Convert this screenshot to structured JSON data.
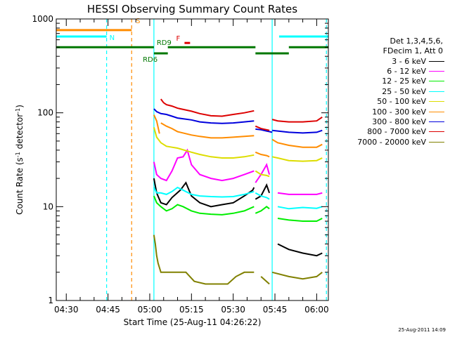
{
  "chart_data": {
    "type": "line",
    "title": "HESSI Observing Summary Count Rates",
    "xlabel": "Start Time (25-Aug-11 04:26:22)",
    "ylabel_parts": [
      "Count Rate (s",
      "-1",
      " detector",
      "-1",
      ")"
    ],
    "yscale": "log",
    "ylim": [
      1,
      1000
    ],
    "xlim_min": [
      266.4,
      364.2
    ],
    "yticks": [
      {
        "v": 1,
        "label": "1"
      },
      {
        "v": 10,
        "label": "10"
      },
      {
        "v": 100,
        "label": "100"
      },
      {
        "v": 1000,
        "label": "1000"
      }
    ],
    "xticks": [
      {
        "t": 270,
        "label": "04:30"
      },
      {
        "t": 285,
        "label": "04:45"
      },
      {
        "t": 300,
        "label": "05:00"
      },
      {
        "t": 315,
        "label": "05:15"
      },
      {
        "t": 330,
        "label": "05:30"
      },
      {
        "t": 345,
        "label": "05:45"
      },
      {
        "t": 360,
        "label": "06:00"
      }
    ],
    "legend_header": [
      "Det 1,3,4,5,6,",
      "FDecim 1, Att 0"
    ],
    "series": [
      {
        "name": "3 - 6 keV",
        "color": "#000000",
        "segments": [
          [
            [
              301.5,
              20
            ],
            [
              302.5,
              14
            ],
            [
              304,
              11
            ],
            [
              306,
              10.5
            ],
            [
              308,
              12.5
            ],
            [
              311,
              15
            ],
            [
              313,
              18
            ],
            [
              315,
              13
            ],
            [
              318,
              11
            ],
            [
              322,
              10
            ],
            [
              326,
              10.5
            ],
            [
              330,
              11
            ],
            [
              334,
              13
            ],
            [
              337,
              15
            ],
            [
              337.5,
              16
            ]
          ],
          [
            [
              338,
              12
            ],
            [
              340,
              13
            ],
            [
              342,
              17
            ],
            [
              343,
              14
            ]
          ],
          [
            [
              346,
              4
            ],
            [
              350,
              3.5
            ],
            [
              355,
              3.2
            ],
            [
              360,
              3
            ],
            [
              362,
              3.2
            ]
          ]
        ]
      },
      {
        "name": "6 - 12 keV",
        "color": "#ff00ff",
        "segments": [
          [
            [
              301.5,
              30
            ],
            [
              302.5,
              22
            ],
            [
              304,
              20
            ],
            [
              306,
              19
            ],
            [
              308,
              24
            ],
            [
              310,
              33
            ],
            [
              312,
              34
            ],
            [
              313.5,
              40
            ],
            [
              315,
              28
            ],
            [
              318,
              22
            ],
            [
              322,
              20
            ],
            [
              326,
              19
            ],
            [
              330,
              20
            ],
            [
              334,
              22
            ],
            [
              337.5,
              24
            ]
          ],
          [
            [
              338,
              18
            ],
            [
              340,
              22
            ],
            [
              342,
              28
            ],
            [
              343,
              22
            ]
          ],
          [
            [
              346,
              14
            ],
            [
              350,
              13.5
            ],
            [
              355,
              13.5
            ],
            [
              360,
              13.5
            ],
            [
              362,
              14
            ]
          ]
        ]
      },
      {
        "name": "12 - 25 keV",
        "color": "#00ee00",
        "segments": [
          [
            [
              301.5,
              13
            ],
            [
              302.5,
              11
            ],
            [
              304,
              10
            ],
            [
              306,
              9
            ],
            [
              308,
              9.5
            ],
            [
              310,
              10.5
            ],
            [
              312,
              10
            ],
            [
              315,
              9
            ],
            [
              318,
              8.5
            ],
            [
              322,
              8.3
            ],
            [
              326,
              8.2
            ],
            [
              330,
              8.5
            ],
            [
              334,
              9
            ],
            [
              337.5,
              10
            ]
          ],
          [
            [
              338,
              8.5
            ],
            [
              340,
              9
            ],
            [
              342,
              10
            ],
            [
              343,
              9.5
            ]
          ],
          [
            [
              346,
              7.5
            ],
            [
              350,
              7.2
            ],
            [
              355,
              7
            ],
            [
              360,
              7
            ],
            [
              362,
              7.5
            ]
          ]
        ]
      },
      {
        "name": "25 - 50 keV",
        "color": "#00ffff",
        "segments": [
          [
            [
              301.5,
              16
            ],
            [
              302.5,
              14
            ],
            [
              304,
              14
            ],
            [
              306,
              13.5
            ],
            [
              308,
              14.5
            ],
            [
              310,
              16
            ],
            [
              312,
              15
            ],
            [
              315,
              13.5
            ],
            [
              318,
              13
            ],
            [
              322,
              12.8
            ],
            [
              326,
              12.7
            ],
            [
              330,
              12.8
            ],
            [
              334,
              13.5
            ],
            [
              337.5,
              14.5
            ]
          ],
          [
            [
              338,
              14
            ],
            [
              340,
              13
            ],
            [
              342,
              12.5
            ],
            [
              343,
              12
            ]
          ],
          [
            [
              346,
              10
            ],
            [
              350,
              9.5
            ],
            [
              355,
              9.8
            ],
            [
              360,
              9.6
            ],
            [
              362,
              10
            ]
          ]
        ]
      },
      {
        "name": "50 - 100 keV",
        "color": "#dddd00",
        "segments": [
          [
            [
              301.5,
              70
            ],
            [
              302.5,
              55
            ],
            [
              304,
              48
            ],
            [
              306,
              44
            ],
            [
              308,
              43
            ],
            [
              310,
              42
            ],
            [
              315,
              38
            ],
            [
              318,
              36
            ],
            [
              322,
              34
            ],
            [
              326,
              33
            ],
            [
              330,
              33
            ],
            [
              334,
              34
            ],
            [
              337.5,
              35.5
            ]
          ],
          [
            [
              338,
              24
            ],
            [
              340,
              22
            ],
            [
              342,
              21.5
            ],
            [
              343,
              21
            ]
          ],
          [
            [
              344,
              34
            ],
            [
              346,
              33
            ],
            [
              350,
              31
            ],
            [
              355,
              30.5
            ],
            [
              360,
              31
            ],
            [
              362,
              33
            ]
          ]
        ]
      },
      {
        "name": "100 - 300 keV",
        "color": "#ff8c00",
        "segments": [
          [
            [
              301.5,
              95
            ],
            [
              302.5,
              82
            ],
            [
              303.5,
              60
            ]
          ],
          [
            [
              304,
              78
            ],
            [
              306,
              72
            ],
            [
              308,
              68
            ],
            [
              310,
              63
            ],
            [
              315,
              58
            ],
            [
              318,
              56
            ],
            [
              322,
              54
            ],
            [
              326,
              54
            ],
            [
              330,
              55
            ],
            [
              334,
              56
            ],
            [
              337.5,
              57
            ]
          ],
          [
            [
              338,
              38
            ],
            [
              340,
              36
            ],
            [
              342,
              35
            ],
            [
              343,
              34
            ]
          ],
          [
            [
              344,
              52
            ],
            [
              346,
              48
            ],
            [
              350,
              45
            ],
            [
              355,
              43
            ],
            [
              360,
              43
            ],
            [
              362,
              46
            ]
          ]
        ]
      },
      {
        "name": "300 - 800 keV",
        "color": "#0000dd",
        "segments": [
          [
            [
              301.5,
              110
            ],
            [
              302.5,
              103
            ],
            [
              304,
              98
            ],
            [
              306,
              96
            ],
            [
              308,
              92
            ],
            [
              310,
              88
            ],
            [
              315,
              84
            ],
            [
              318,
              80
            ],
            [
              322,
              78
            ],
            [
              326,
              77
            ],
            [
              330,
              78
            ],
            [
              334,
              80
            ],
            [
              337.5,
              82
            ]
          ],
          [
            [
              338,
              67
            ],
            [
              340,
              66
            ],
            [
              342,
              64
            ],
            [
              344,
              62
            ]
          ],
          [
            [
              344,
              65
            ],
            [
              346,
              64
            ],
            [
              350,
              62
            ],
            [
              355,
              61
            ],
            [
              360,
              62
            ],
            [
              362,
              65
            ]
          ]
        ]
      },
      {
        "name": "800 - 7000 keV",
        "color": "#dd0000",
        "segments": [
          [
            [
              304,
              140
            ],
            [
              305,
              128
            ],
            [
              306,
              122
            ],
            [
              308,
              118
            ],
            [
              310,
              112
            ],
            [
              315,
              104
            ],
            [
              318,
              98
            ],
            [
              322,
              93
            ],
            [
              326,
              92
            ],
            [
              330,
              96
            ],
            [
              334,
              100
            ],
            [
              337.5,
              105
            ]
          ],
          [
            [
              338,
              72
            ],
            [
              340,
              68
            ],
            [
              342,
              66
            ],
            [
              343,
              65
            ]
          ],
          [
            [
              344,
              85
            ],
            [
              346,
              82
            ],
            [
              350,
              80
            ],
            [
              355,
              80
            ],
            [
              360,
              82
            ],
            [
              362,
              90
            ]
          ]
        ]
      },
      {
        "name": "7000 - 20000 keV",
        "color": "#808000",
        "segments": [
          [
            [
              301.5,
              5
            ],
            [
              302,
              4
            ],
            [
              302.5,
              3
            ],
            [
              303,
              2.5
            ],
            [
              304,
              2
            ],
            [
              306,
              2
            ],
            [
              310,
              2
            ],
            [
              313,
              2
            ],
            [
              316,
              1.6
            ],
            [
              320,
              1.5
            ],
            [
              324,
              1.5
            ],
            [
              328,
              1.5
            ],
            [
              331,
              1.8
            ],
            [
              334,
              2
            ],
            [
              337.5,
              2
            ]
          ],
          [
            [
              340,
              1.8
            ],
            [
              343,
              1.5
            ]
          ],
          [
            [
              344,
              2
            ],
            [
              350,
              1.8
            ],
            [
              355,
              1.7
            ],
            [
              360,
              1.8
            ],
            [
              362,
              2
            ]
          ]
        ]
      }
    ],
    "attenuator_bars": [
      {
        "label": "S",
        "color": "#ff8c00",
        "value": 760,
        "from": 266.4,
        "to": 293.5,
        "label_at": 295,
        "label_dy": -10
      },
      {
        "label": "N",
        "color": "#00ffff",
        "value": 650,
        "from": 266.4,
        "to": 284.5,
        "label_at": 285.5,
        "label_dy": 5
      },
      {
        "label": "N",
        "color": "#00ffff",
        "value": 650,
        "from": 346.5,
        "to": 364.2,
        "label_at": null,
        "label_dy": 0
      },
      {
        "label": "F",
        "color": "#dd0000",
        "value": 555,
        "from": 312.5,
        "to": 314.5,
        "label_at": 309.5,
        "label_dy": -3
      },
      {
        "label": "RD9",
        "color": "#007700",
        "value": 500,
        "from": 266.4,
        "to": 301.5,
        "label_at": 302.5,
        "label_dy": -3
      },
      {
        "label": "RD6",
        "color": "#007700",
        "value": 430,
        "from": 301.5,
        "to": 306.5,
        "label_at": 297.5,
        "label_dy": 12
      },
      {
        "label": "",
        "color": "#007700",
        "value": 500,
        "from": 306.5,
        "to": 338.0,
        "label_at": null,
        "label_dy": 0
      },
      {
        "label": "",
        "color": "#007700",
        "value": 430,
        "from": 338.0,
        "to": 350.0,
        "label_at": null,
        "label_dy": 0
      },
      {
        "label": "",
        "color": "#007700",
        "value": 500,
        "from": 350.0,
        "to": 364.2,
        "label_at": null,
        "label_dy": 0
      }
    ],
    "vlines": [
      {
        "t": 284.5,
        "color": "#00ffff",
        "style": "dashed"
      },
      {
        "t": 293.5,
        "color": "#ff8c00",
        "style": "dashed"
      },
      {
        "t": 301.5,
        "color": "#00ffff",
        "style": "solid"
      },
      {
        "t": 344.0,
        "color": "#00ffff",
        "style": "solid"
      },
      {
        "t": 363.5,
        "color": "#00ffff",
        "style": "dashed"
      }
    ],
    "grid": false,
    "legend_position": "right"
  },
  "timestamp": "25-Aug-2011 14:09"
}
